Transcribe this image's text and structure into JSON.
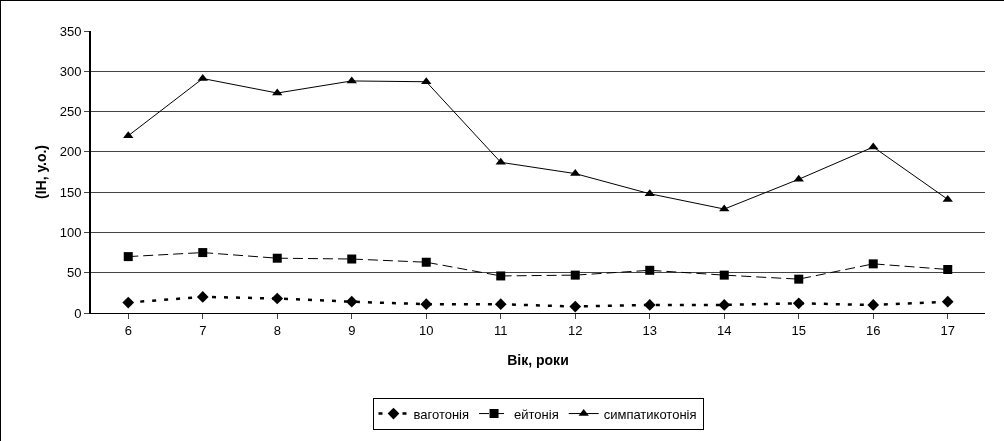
{
  "chart_data": {
    "type": "line",
    "xlabel": "Вік, роки",
    "ylabel": "(ІН, у.о.)",
    "categories": [
      "6",
      "7",
      "8",
      "9",
      "10",
      "11",
      "12",
      "13",
      "14",
      "15",
      "16",
      "17"
    ],
    "ylim": [
      0,
      350
    ],
    "yticks": [
      0,
      50,
      100,
      150,
      200,
      250,
      300,
      350
    ],
    "grid": "y",
    "legend": "bottom",
    "series": [
      {
        "name": "ваготонія",
        "color": "#000000",
        "marker": "diamond",
        "line_style": "dashed",
        "values": [
          13,
          20,
          18,
          14,
          11,
          11,
          8,
          10,
          10,
          12,
          10,
          14
        ]
      },
      {
        "name": "ейтонія",
        "color": "#000000",
        "marker": "square",
        "line_style": "dashed",
        "values": [
          70,
          75,
          68,
          67,
          63,
          46,
          47,
          53,
          47,
          42,
          61,
          54
        ]
      },
      {
        "name": "симпатикотонія",
        "color": "#000000",
        "marker": "triangle",
        "line_style": "solid",
        "values": [
          220,
          291,
          273,
          288,
          287,
          187,
          173,
          148,
          129,
          166,
          206,
          141
        ]
      }
    ]
  }
}
